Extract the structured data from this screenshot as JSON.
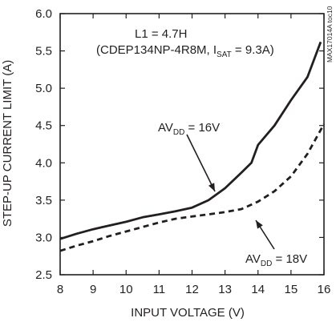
{
  "chart_data": {
    "type": "line",
    "title": "",
    "xlabel": "INPUT VOLTAGE (V)",
    "ylabel": "STEP-UP CURRENT LIMIT (A)",
    "xlim": [
      8,
      16
    ],
    "ylim": [
      2.5,
      6.0
    ],
    "x_ticks": [
      "8",
      "9",
      "10",
      "11",
      "12",
      "13",
      "14",
      "15",
      "16"
    ],
    "y_ticks": [
      "2.5",
      "3.0",
      "3.5",
      "4.0",
      "4.5",
      "5.0",
      "5.5",
      "6.0"
    ],
    "grid": false,
    "annotations": {
      "inductor_line1": "L1 = 4.7",
      "inductor_glyph": "",
      "inductor_unit": "H",
      "inductor_line2_prefix": "(CDEP134NP-4R8M, I",
      "inductor_line2_sub": "SAT",
      "inductor_line2_suffix": " = 9.3A)",
      "figure_id": "MAX17014A toc10"
    },
    "series": [
      {
        "name": "AVDD = 16V",
        "label_main": "AV",
        "label_sub": "DD",
        "label_value": " = 16V",
        "style": "solid",
        "x": [
          8.0,
          8.5,
          9.0,
          9.5,
          10.0,
          10.5,
          11.0,
          11.5,
          12.0,
          12.5,
          13.0,
          13.5,
          13.8,
          14.0,
          14.5,
          15.0,
          15.5,
          15.9
        ],
        "y": [
          2.98,
          3.05,
          3.11,
          3.16,
          3.21,
          3.27,
          3.31,
          3.35,
          3.4,
          3.5,
          3.66,
          3.87,
          4.0,
          4.24,
          4.5,
          4.84,
          5.15,
          5.62
        ]
      },
      {
        "name": "AVDD = 18V",
        "label_main": "AV",
        "label_sub": "DD",
        "label_value": " = 18V",
        "style": "dashed",
        "x": [
          8.0,
          8.5,
          9.0,
          9.5,
          10.0,
          10.5,
          11.0,
          11.5,
          12.0,
          12.5,
          13.0,
          13.5,
          14.0,
          14.5,
          15.0,
          15.5,
          16.0
        ],
        "y": [
          2.82,
          2.89,
          2.95,
          3.02,
          3.08,
          3.14,
          3.2,
          3.25,
          3.28,
          3.31,
          3.34,
          3.38,
          3.48,
          3.62,
          3.82,
          4.12,
          4.52
        ]
      }
    ]
  }
}
